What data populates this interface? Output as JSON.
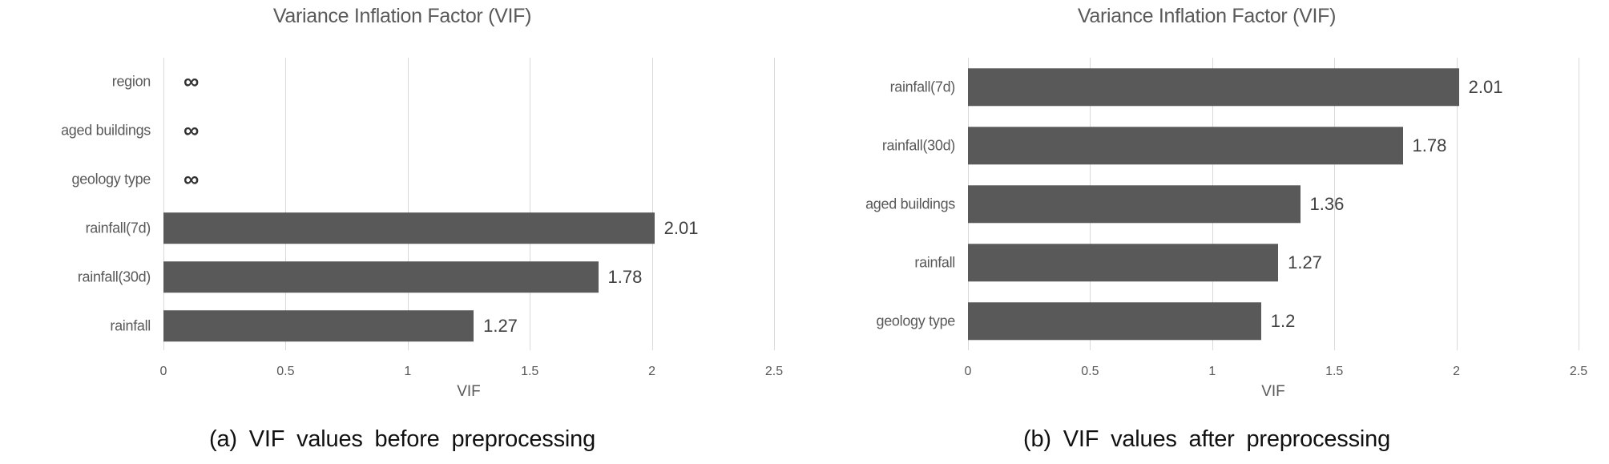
{
  "colors": {
    "background": "#ffffff",
    "bar": "#595959",
    "gridline": "#d9d9d9",
    "title_text": "#595959",
    "category_text": "#595959",
    "tick_text": "#595959",
    "axis_label_text": "#595959",
    "value_text": "#404040",
    "infinity_text": "#333333",
    "caption_text": "#111111"
  },
  "chart_data": [
    {
      "type": "bar",
      "orientation": "horizontal",
      "title": "Variance Inflation Factor (VIF)",
      "categories": [
        "region",
        "aged buildings",
        "geology type",
        "rainfall(7d)",
        "rainfall(30d)",
        "rainfall"
      ],
      "values": [
        null,
        null,
        null,
        2.01,
        1.78,
        1.27
      ],
      "value_labels": [
        "∞",
        "∞",
        "∞",
        "2.01",
        "1.78",
        "1.27"
      ],
      "xlabel": "VIF",
      "xlim": [
        0,
        2.5
      ],
      "xticks": [
        0,
        0.5,
        1,
        1.5,
        2,
        2.5
      ],
      "xtick_labels": [
        "0",
        "0.5",
        "1",
        "1.5",
        "2",
        "2.5"
      ],
      "grid": "vertical",
      "legend": "none",
      "caption": "(a) VIF values before preprocessing"
    },
    {
      "type": "bar",
      "orientation": "horizontal",
      "title": "Variance Inflation Factor (VIF)",
      "categories": [
        "rainfall(7d)",
        "rainfall(30d)",
        "aged buildings",
        "rainfall",
        "geology type"
      ],
      "values": [
        2.01,
        1.78,
        1.36,
        1.27,
        1.2
      ],
      "value_labels": [
        "2.01",
        "1.78",
        "1.36",
        "1.27",
        "1.2"
      ],
      "xlabel": "VIF",
      "xlim": [
        0,
        2.5
      ],
      "xticks": [
        0,
        0.5,
        1,
        1.5,
        2,
        2.5
      ],
      "xtick_labels": [
        "0",
        "0.5",
        "1",
        "1.5",
        "2",
        "2.5"
      ],
      "grid": "vertical",
      "legend": "none",
      "caption": "(b) VIF values after preprocessing"
    }
  ]
}
